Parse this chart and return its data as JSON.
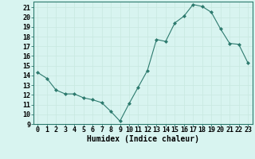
{
  "x": [
    0,
    1,
    2,
    3,
    4,
    5,
    6,
    7,
    8,
    9,
    10,
    11,
    12,
    13,
    14,
    15,
    16,
    17,
    18,
    19,
    20,
    21,
    22,
    23
  ],
  "y": [
    14.3,
    13.7,
    12.5,
    12.1,
    12.1,
    11.7,
    11.5,
    11.2,
    10.3,
    9.3,
    11.1,
    12.8,
    14.5,
    17.7,
    17.5,
    19.4,
    20.1,
    21.3,
    21.1,
    20.5,
    18.8,
    17.3,
    17.2,
    15.3
  ],
  "line_color": "#2d7a6e",
  "bg_color": "#d8f4f0",
  "grid_color": "#c8e8e0",
  "xlabel": "Humidex (Indice chaleur)",
  "ylabel_ticks": [
    9,
    10,
    11,
    12,
    13,
    14,
    15,
    16,
    17,
    18,
    19,
    20,
    21
  ],
  "xlim": [
    -0.5,
    23.5
  ],
  "ylim": [
    9,
    21.6
  ],
  "tick_fontsize": 6.0,
  "xlabel_fontsize": 7.0
}
